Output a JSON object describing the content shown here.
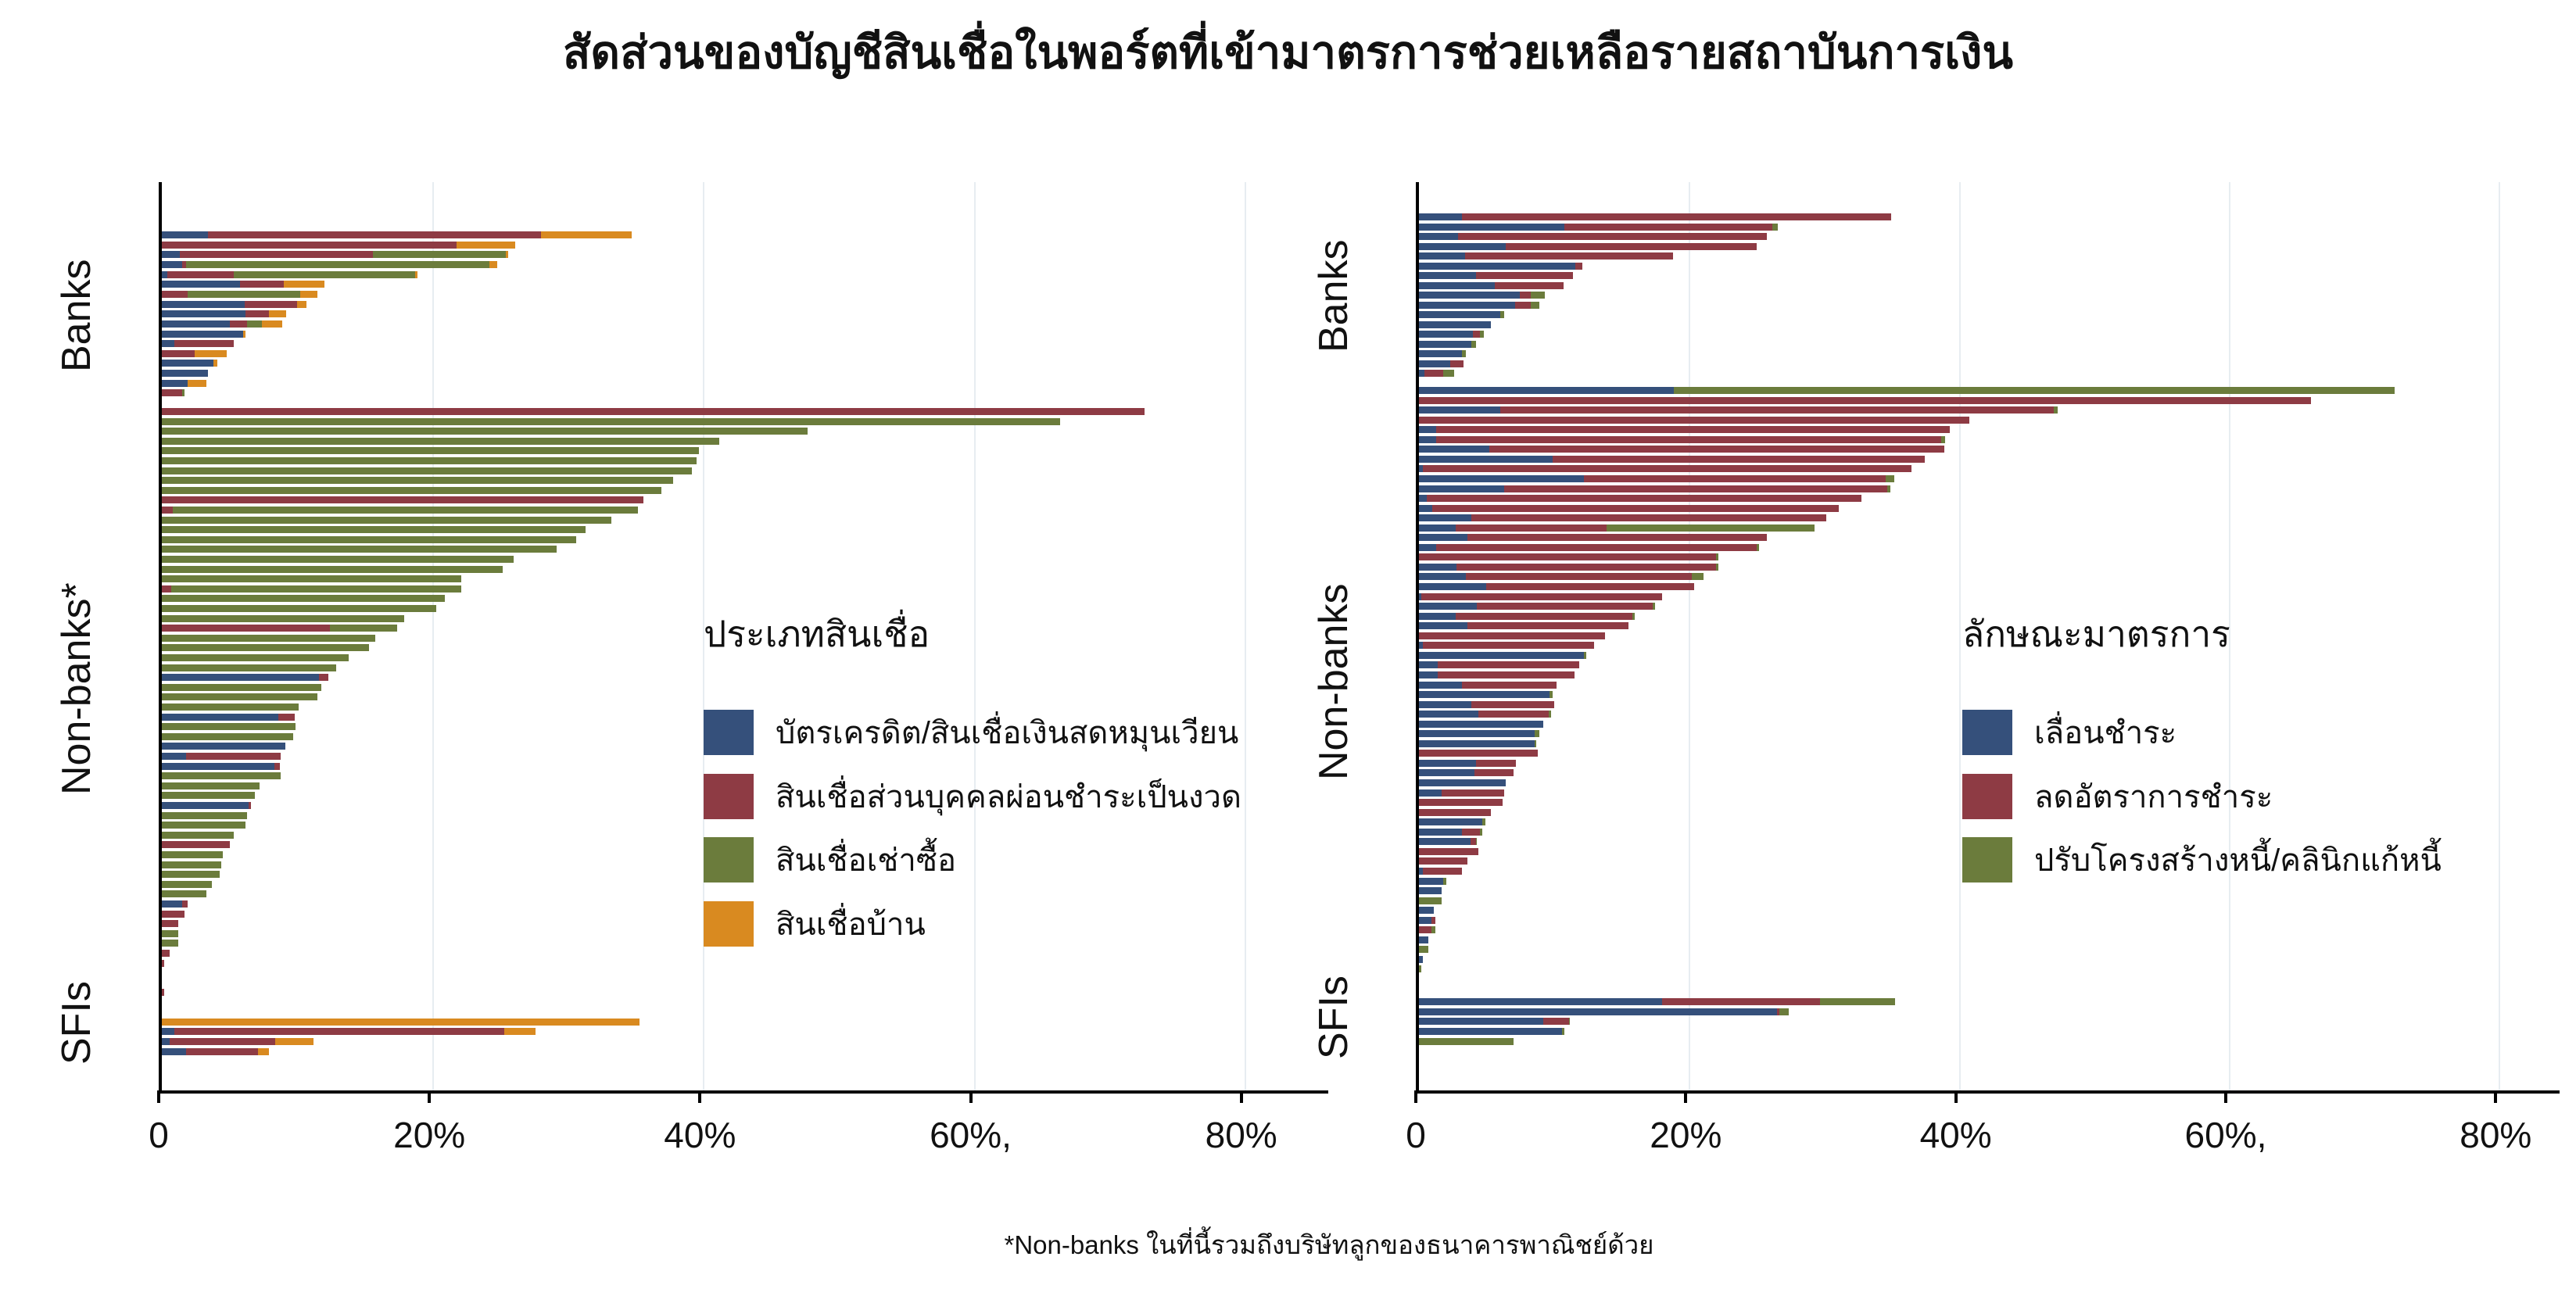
{
  "title": "สัดส่วนของบัญชีสินเชื่อในพอร์ตที่เข้ามาตรการช่วยเหลือรายสถาบันการเงิน",
  "footnote": "*Non-banks ในที่นี้รวมถึงบริษัทลูกของธนาคารพาณิชย์ด้วย",
  "chart_data": [
    {
      "type": "bar",
      "orientation": "horizontal-stacked",
      "legend_title": "ประเภทสินเชื่อ",
      "categories": [
        "Banks",
        "Non-banks*",
        "SFIs"
      ],
      "series_labels": [
        "บัตรเครดิต/สินเชื่อเงินสดหมุนเวียน",
        "สินเชื่อส่วนบุคคลผ่อนชำระเป็นงวด",
        "สินเชื่อเช่าซื้อ",
        "สินเชื่อบ้าน"
      ],
      "colors": [
        "#35507B",
        "#8E3B44",
        "#6B7C3C",
        "#D98A20"
      ],
      "xlabel": "",
      "ylabel": "",
      "xlim": [
        0,
        86.2
      ],
      "xtick_values": [
        0,
        20,
        40,
        60,
        80
      ],
      "xtick_labels": [
        "0",
        "20%",
        "40%",
        "60%,",
        "80%"
      ],
      "grid": "vertical",
      "units": "percent of loan accounts",
      "sections": {
        "Banks": [
          [
            3.4,
            24.6,
            0,
            6.7
          ],
          [
            0,
            21.8,
            0,
            4.3
          ],
          [
            1.3,
            14.3,
            9.8,
            0.2
          ],
          [
            1.5,
            0.3,
            22.4,
            0.6
          ],
          [
            0.4,
            4.9,
            13.4,
            0.2
          ],
          [
            5.8,
            3.2,
            0,
            3.0
          ],
          [
            0,
            1.9,
            8.3,
            1.3
          ],
          [
            6.1,
            3.9,
            0,
            0.7
          ],
          [
            6.2,
            1.7,
            0,
            1.3
          ],
          [
            5.0,
            1.3,
            1.1,
            1.5
          ],
          [
            6.0,
            0,
            0,
            0.2
          ],
          [
            0.9,
            4.4,
            0,
            0
          ],
          [
            0,
            2.4,
            0,
            2.4
          ],
          [
            3.8,
            0,
            0,
            0.3
          ],
          [
            3.4,
            0,
            0,
            0
          ],
          [
            1.9,
            0,
            0,
            1.4
          ],
          [
            0,
            1.5,
            0.2,
            0
          ]
        ],
        "Non-banks*": [
          [
            0,
            72.6,
            0,
            0
          ],
          [
            0,
            0,
            66.4,
            0
          ],
          [
            0,
            0,
            47.7,
            0
          ],
          [
            0,
            0,
            41.2,
            0
          ],
          [
            0,
            0,
            39.7,
            0
          ],
          [
            0,
            0,
            39.5,
            0
          ],
          [
            0,
            0,
            39.2,
            0
          ],
          [
            0,
            0,
            37.8,
            0
          ],
          [
            0,
            0,
            36.9,
            0
          ],
          [
            0,
            35.6,
            0,
            0
          ],
          [
            0,
            0.8,
            34.4,
            0
          ],
          [
            0,
            0,
            33.2,
            0
          ],
          [
            0,
            0,
            31.3,
            0
          ],
          [
            0,
            0,
            30.6,
            0
          ],
          [
            0,
            0,
            29.2,
            0
          ],
          [
            0,
            0,
            26.0,
            0
          ],
          [
            0,
            0,
            25.2,
            0
          ],
          [
            0,
            0,
            22.1,
            0
          ],
          [
            0,
            0.7,
            21.4,
            0
          ],
          [
            0,
            0,
            20.9,
            0
          ],
          [
            0,
            0,
            20.3,
            0
          ],
          [
            0,
            0,
            17.9,
            0
          ],
          [
            0,
            12.4,
            5.0,
            0
          ],
          [
            0,
            0,
            15.8,
            0
          ],
          [
            0,
            0,
            15.3,
            0
          ],
          [
            0,
            0,
            13.8,
            0
          ],
          [
            0,
            0,
            12.9,
            0
          ],
          [
            11.6,
            0.7,
            0,
            0
          ],
          [
            0,
            0,
            11.8,
            0
          ],
          [
            0,
            0,
            11.5,
            0
          ],
          [
            0,
            0,
            10.1,
            0
          ],
          [
            8.6,
            1.2,
            0,
            0
          ],
          [
            0,
            0,
            9.9,
            0
          ],
          [
            0,
            0,
            9.7,
            0
          ],
          [
            9.1,
            0,
            0,
            0
          ],
          [
            1.8,
            7.0,
            0,
            0
          ],
          [
            8.3,
            0.4,
            0,
            0
          ],
          [
            0,
            0,
            8.8,
            0
          ],
          [
            0,
            0,
            7.2,
            0
          ],
          [
            0,
            0,
            6.9,
            0
          ],
          [
            6.4,
            0.2,
            0,
            0
          ],
          [
            0,
            0,
            6.3,
            0
          ],
          [
            0,
            0,
            6.2,
            0
          ],
          [
            0,
            0,
            5.3,
            0
          ],
          [
            0,
            5.0,
            0,
            0
          ],
          [
            0,
            0,
            4.5,
            0
          ],
          [
            0,
            0,
            4.4,
            0
          ],
          [
            0,
            0,
            4.3,
            0
          ],
          [
            0,
            0,
            3.7,
            0
          ],
          [
            0,
            0,
            3.3,
            0
          ],
          [
            1.5,
            0.4,
            0,
            0
          ],
          [
            0,
            1.7,
            0,
            0
          ],
          [
            0,
            1.2,
            0,
            0
          ],
          [
            0,
            0,
            1.2,
            0
          ],
          [
            0,
            0,
            1.2,
            0
          ],
          [
            0,
            0.6,
            0,
            0
          ],
          [
            0,
            0.2,
            0,
            0
          ]
        ],
        "SFIs": [
          [
            0,
            0.2,
            0,
            0
          ],
          [
            0,
            0,
            0,
            0
          ],
          [
            0,
            0,
            0,
            0
          ],
          [
            0,
            0,
            0,
            35.3
          ],
          [
            0.9,
            24.4,
            0,
            2.3
          ],
          [
            0.6,
            7.8,
            0,
            2.8
          ],
          [
            1.8,
            5.3,
            0,
            0.8
          ]
        ]
      }
    },
    {
      "type": "bar",
      "orientation": "horizontal-stacked",
      "legend_title": "ลักษณะมาตรการ",
      "categories": [
        "Banks",
        "Non-banks",
        "SFIs"
      ],
      "series_labels": [
        "เลื่อนชำระ",
        "ลดอัตราการชำระ",
        "ปรับโครงสร้างหนี้/คลินิกแก้หนี้"
      ],
      "colors": [
        "#35507B",
        "#8E3B44",
        "#6B7C3C"
      ],
      "xlabel": "",
      "ylabel": "",
      "xlim": [
        0,
        84.5
      ],
      "xtick_values": [
        0,
        20,
        40,
        60,
        80
      ],
      "xtick_labels": [
        "0",
        "20%",
        "40%",
        "60%,",
        "80%"
      ],
      "grid": "vertical",
      "units": "percent of loan accounts",
      "sections": {
        "Banks": [
          [
            3.2,
            31.8,
            0
          ],
          [
            10.8,
            15.4,
            0.4
          ],
          [
            2.9,
            22.9,
            0
          ],
          [
            6.4,
            18.6,
            0
          ],
          [
            3.4,
            15.4,
            0
          ],
          [
            11.6,
            0.5,
            0
          ],
          [
            4.2,
            7.2,
            0
          ],
          [
            5.6,
            5.1,
            0
          ],
          [
            7.5,
            0.8,
            1.0
          ],
          [
            7.1,
            1.2,
            0.6
          ],
          [
            6.0,
            0,
            0.3
          ],
          [
            5.3,
            0,
            0
          ],
          [
            4.0,
            0.5,
            0.3
          ],
          [
            3.9,
            0,
            0.3
          ],
          [
            3.2,
            0,
            0.3
          ],
          [
            2.3,
            1.0,
            0
          ],
          [
            0.4,
            1.4,
            0.8
          ]
        ],
        "Non-banks": [
          [
            18.9,
            0,
            53.4
          ],
          [
            0,
            66.1,
            0
          ],
          [
            6.0,
            41.0,
            0.3
          ],
          [
            0,
            40.8,
            0
          ],
          [
            1.3,
            38.0,
            0
          ],
          [
            1.3,
            37.4,
            0.3
          ],
          [
            5.2,
            33.7,
            0
          ],
          [
            9.9,
            27.6,
            0
          ],
          [
            0.3,
            36.2,
            0
          ],
          [
            12.2,
            22.4,
            0.6
          ],
          [
            6.3,
            28.4,
            0.2
          ],
          [
            0.6,
            32.2,
            0
          ],
          [
            1.0,
            30.1,
            0
          ],
          [
            3.9,
            26.3,
            0
          ],
          [
            2.7,
            11.2,
            15.4
          ],
          [
            3.6,
            22.2,
            0
          ],
          [
            1.3,
            23.7,
            0.2
          ],
          [
            0,
            22.0,
            0.2
          ],
          [
            2.8,
            19.2,
            0.2
          ],
          [
            3.5,
            16.7,
            0.9
          ],
          [
            5.0,
            15.4,
            0
          ],
          [
            0.2,
            17.8,
            0
          ],
          [
            4.3,
            13.0,
            0.2
          ],
          [
            2.7,
            13.1,
            0.2
          ],
          [
            3.6,
            11.9,
            0
          ],
          [
            0,
            13.8,
            0
          ],
          [
            0.3,
            12.7,
            0
          ],
          [
            12.2,
            0,
            0.2
          ],
          [
            1.4,
            10.5,
            0
          ],
          [
            1.4,
            10.1,
            0
          ],
          [
            3.2,
            7.0,
            0
          ],
          [
            9.7,
            0,
            0.2
          ],
          [
            3.9,
            6.1,
            0
          ],
          [
            4.4,
            5.2,
            0.2
          ],
          [
            9.2,
            0,
            0
          ],
          [
            8.6,
            0,
            0.3
          ],
          [
            8.6,
            0,
            0.1
          ],
          [
            0,
            8.8,
            0
          ],
          [
            4.2,
            3.0,
            0
          ],
          [
            4.1,
            2.9,
            0
          ],
          [
            6.4,
            0,
            0
          ],
          [
            1.7,
            4.6,
            0
          ],
          [
            0,
            6.2,
            0
          ],
          [
            0,
            5.3,
            0
          ],
          [
            4.7,
            0,
            0.2
          ],
          [
            3.2,
            1.3,
            0.2
          ],
          [
            3.8,
            0.4,
            0.1
          ],
          [
            0,
            4.4,
            0
          ],
          [
            0,
            3.6,
            0
          ],
          [
            0.3,
            2.9,
            0
          ],
          [
            1.8,
            0,
            0.2
          ],
          [
            1.7,
            0,
            0
          ],
          [
            0,
            0,
            1.7
          ],
          [
            1.1,
            0,
            0
          ],
          [
            0.9,
            0.3,
            0
          ],
          [
            0,
            0.9,
            0.3
          ],
          [
            0.7,
            0,
            0
          ],
          [
            0,
            0,
            0.7
          ],
          [
            0.3,
            0,
            0
          ],
          [
            0,
            0,
            0.2
          ]
        ],
        "SFIs": [
          [
            0,
            0,
            0
          ],
          [
            18.0,
            11.7,
            5.6
          ],
          [
            26.5,
            0.2,
            0.7
          ],
          [
            9.2,
            1.9,
            0.1
          ],
          [
            10.6,
            0,
            0.2
          ],
          [
            0,
            0,
            7.0
          ]
        ]
      }
    }
  ]
}
